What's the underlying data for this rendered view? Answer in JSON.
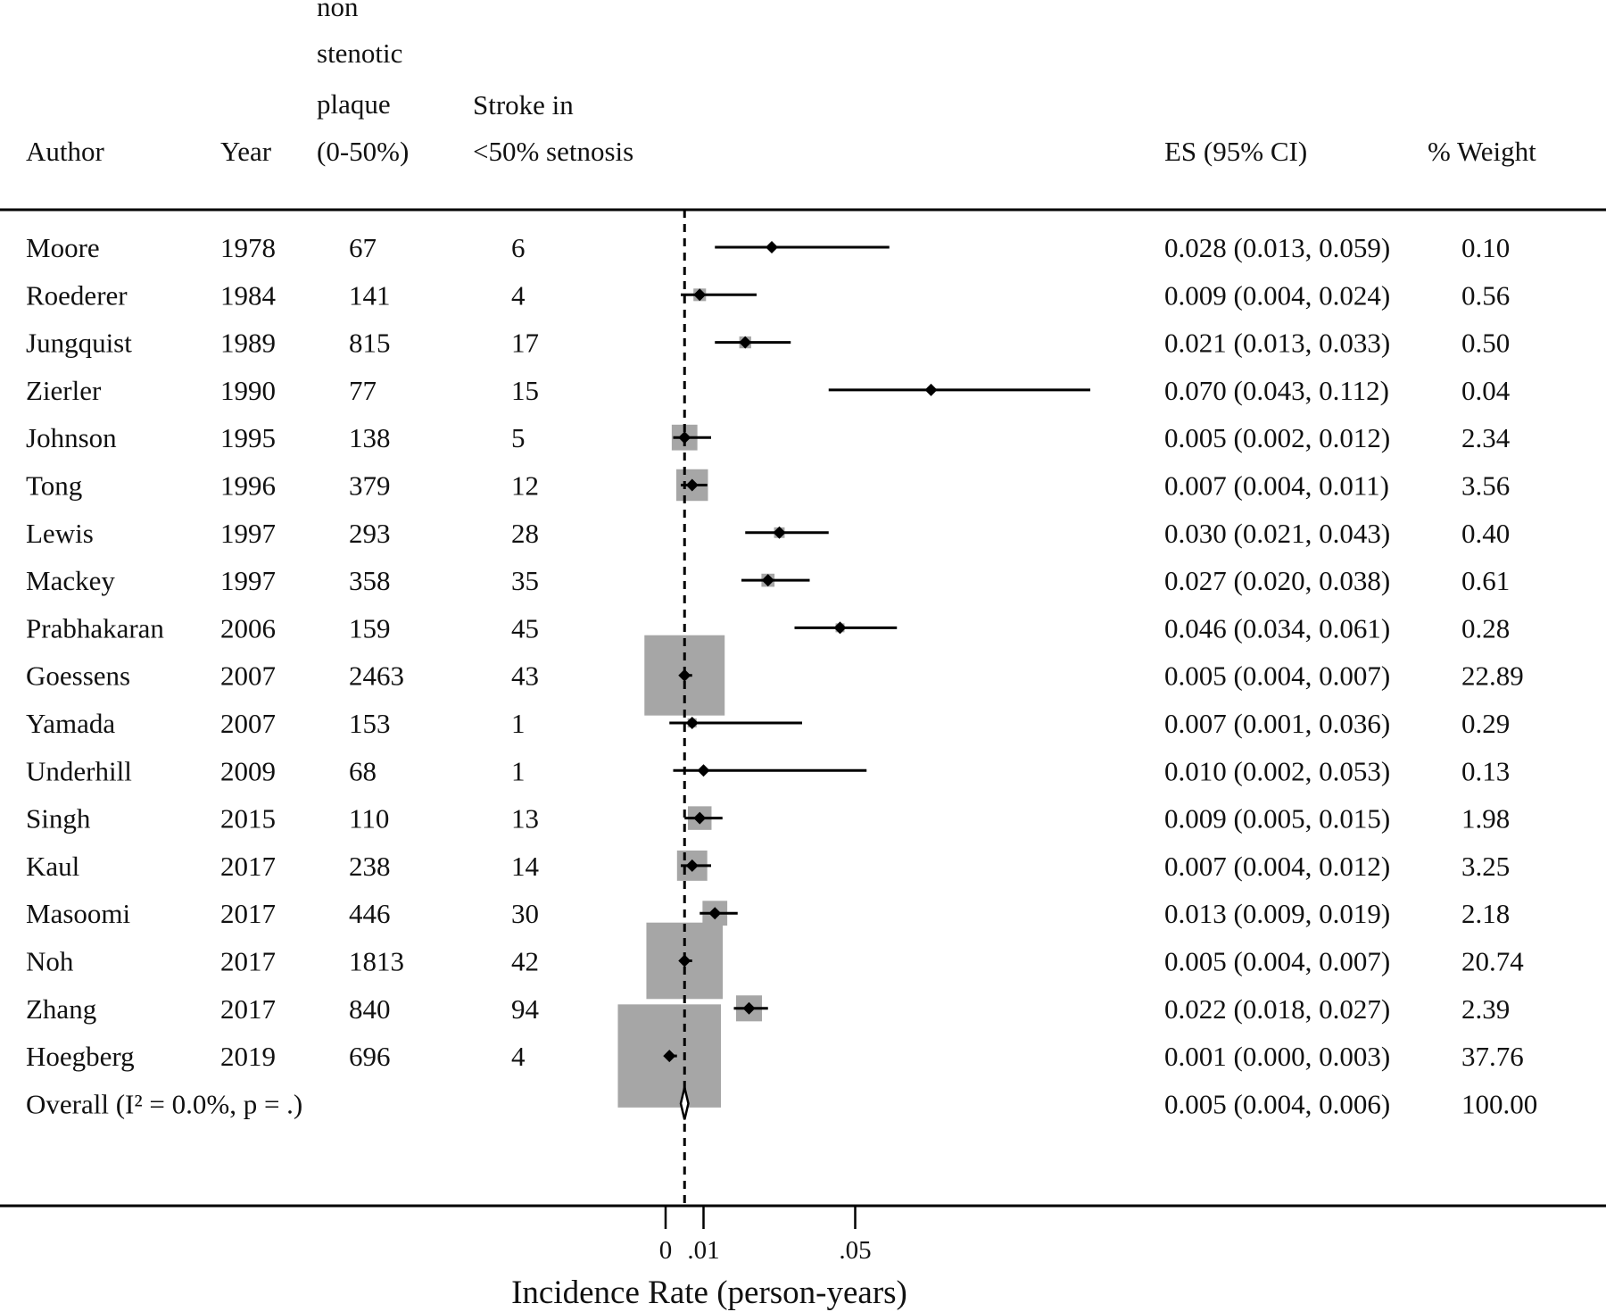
{
  "chart_data": {
    "type": "forest",
    "headers": {
      "author": "Author",
      "year": "Year",
      "plaque": [
        "non",
        "stenotic",
        "plaque",
        "(0-50%)"
      ],
      "stroke": [
        "Stroke in",
        "<50% setnosis"
      ],
      "es": "ES (95% CI)",
      "weight": "% Weight"
    },
    "studies": [
      {
        "author": "Moore",
        "year": "1978",
        "n": "67",
        "events": "6",
        "es": 0.028,
        "lo": 0.013,
        "hi": 0.059,
        "es_text": "0.028 (0.013, 0.059)",
        "weight": "0.10"
      },
      {
        "author": "Roederer",
        "year": "1984",
        "n": "141",
        "events": "4",
        "es": 0.009,
        "lo": 0.004,
        "hi": 0.024,
        "es_text": "0.009 (0.004, 0.024)",
        "weight": "0.56"
      },
      {
        "author": "Jungquist",
        "year": "1989",
        "n": "815",
        "events": "17",
        "es": 0.021,
        "lo": 0.013,
        "hi": 0.033,
        "es_text": "0.021 (0.013, 0.033)",
        "weight": "0.50"
      },
      {
        "author": "Zierler",
        "year": "1990",
        "n": "77",
        "events": "15",
        "es": 0.07,
        "lo": 0.043,
        "hi": 0.112,
        "es_text": "0.070 (0.043, 0.112)",
        "weight": "0.04"
      },
      {
        "author": "Johnson",
        "year": "1995",
        "n": "138",
        "events": "5",
        "es": 0.005,
        "lo": 0.002,
        "hi": 0.012,
        "es_text": "0.005 (0.002, 0.012)",
        "weight": "2.34"
      },
      {
        "author": "Tong",
        "year": "1996",
        "n": "379",
        "events": "12",
        "es": 0.007,
        "lo": 0.004,
        "hi": 0.011,
        "es_text": "0.007 (0.004, 0.011)",
        "weight": "3.56"
      },
      {
        "author": "Lewis",
        "year": "1997",
        "n": "293",
        "events": "28",
        "es": 0.03,
        "lo": 0.021,
        "hi": 0.043,
        "es_text": "0.030 (0.021, 0.043)",
        "weight": "0.40"
      },
      {
        "author": "Mackey",
        "year": "1997",
        "n": "358",
        "events": "35",
        "es": 0.027,
        "lo": 0.02,
        "hi": 0.038,
        "es_text": "0.027 (0.020, 0.038)",
        "weight": "0.61"
      },
      {
        "author": "Prabhakaran",
        "year": "2006",
        "n": "159",
        "events": "45",
        "es": 0.046,
        "lo": 0.034,
        "hi": 0.061,
        "es_text": "0.046 (0.034, 0.061)",
        "weight": "0.28"
      },
      {
        "author": "Goessens",
        "year": "2007",
        "n": "2463",
        "events": "43",
        "es": 0.005,
        "lo": 0.004,
        "hi": 0.007,
        "es_text": "0.005 (0.004, 0.007)",
        "weight": "22.89"
      },
      {
        "author": "Yamada",
        "year": "2007",
        "n": "153",
        "events": "1",
        "es": 0.007,
        "lo": 0.001,
        "hi": 0.036,
        "es_text": "0.007 (0.001, 0.036)",
        "weight": "0.29"
      },
      {
        "author": "Underhill",
        "year": "2009",
        "n": "68",
        "events": "1",
        "es": 0.01,
        "lo": 0.002,
        "hi": 0.053,
        "es_text": "0.010 (0.002, 0.053)",
        "weight": "0.13"
      },
      {
        "author": "Singh",
        "year": "2015",
        "n": "110",
        "events": "13",
        "es": 0.009,
        "lo": 0.005,
        "hi": 0.015,
        "es_text": "0.009 (0.005, 0.015)",
        "weight": "1.98"
      },
      {
        "author": "Kaul",
        "year": "2017",
        "n": "238",
        "events": "14",
        "es": 0.007,
        "lo": 0.004,
        "hi": 0.012,
        "es_text": "0.007 (0.004, 0.012)",
        "weight": "3.25"
      },
      {
        "author": "Masoomi",
        "year": "2017",
        "n": "446",
        "events": "30",
        "es": 0.013,
        "lo": 0.009,
        "hi": 0.019,
        "es_text": "0.013 (0.009, 0.019)",
        "weight": "2.18"
      },
      {
        "author": "Noh",
        "year": "2017",
        "n": "1813",
        "events": "42",
        "es": 0.005,
        "lo": 0.004,
        "hi": 0.007,
        "es_text": "0.005 (0.004, 0.007)",
        "weight": "20.74"
      },
      {
        "author": "Zhang",
        "year": "2017",
        "n": "840",
        "events": "94",
        "es": 0.022,
        "lo": 0.018,
        "hi": 0.027,
        "es_text": "0.022 (0.018, 0.027)",
        "weight": "2.39"
      },
      {
        "author": "Hoegberg",
        "year": "2019",
        "n": "696",
        "events": "4",
        "es": 0.001,
        "lo": 0.0,
        "hi": 0.003,
        "es_text": "0.001 (0.000, 0.003)",
        "weight": "37.76"
      }
    ],
    "overall": {
      "label": "Overall  (I² = 0.0%, p = .)",
      "es": 0.005,
      "lo": 0.004,
      "hi": 0.006,
      "es_text": "0.005 (0.004, 0.006)",
      "weight": "100.00"
    },
    "x_ticks": [
      {
        "value": 0,
        "label": "0"
      },
      {
        "value": 0.01,
        "label": ".01"
      },
      {
        "value": 0.05,
        "label": ".05"
      }
    ],
    "xlabel": "Incidence Rate (person-years)",
    "xlim": [
      0,
      0.112
    ],
    "reference_line": 0.005,
    "colors": {
      "weight_box": "#a6a6a6",
      "marker": "#000000"
    }
  }
}
